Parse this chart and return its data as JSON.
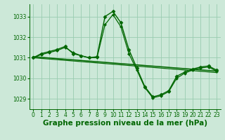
{
  "title": "Graphe pression niveau de la mer (hPa)",
  "bg_color": "#cce8d8",
  "grid_color": "#99ccb0",
  "line_color": "#006600",
  "xlim": [
    -0.5,
    23.5
  ],
  "ylim": [
    1028.5,
    1033.6
  ],
  "yticks": [
    1029,
    1030,
    1031,
    1032,
    1033
  ],
  "xticks": [
    0,
    1,
    2,
    3,
    4,
    5,
    6,
    7,
    8,
    9,
    10,
    11,
    12,
    13,
    14,
    15,
    16,
    17,
    18,
    19,
    20,
    21,
    22,
    23
  ],
  "series": [
    {
      "x": [
        0,
        1,
        2,
        3,
        4,
        5,
        6,
        7,
        8,
        9,
        10,
        11,
        12,
        13,
        14,
        15,
        16,
        17,
        18,
        19,
        20,
        21,
        22,
        23
      ],
      "y": [
        1031.0,
        1031.2,
        1031.3,
        1031.4,
        1031.55,
        1031.2,
        1031.1,
        1031.0,
        1031.05,
        1033.0,
        1033.25,
        1032.7,
        1031.4,
        1030.5,
        1029.6,
        1029.1,
        1029.2,
        1029.4,
        1030.1,
        1030.3,
        1030.45,
        1030.55,
        1030.6,
        1030.4
      ],
      "marker": "D",
      "markersize": 2.5,
      "lw": 1.0,
      "zorder": 4
    },
    {
      "x": [
        0,
        1,
        2,
        3,
        4,
        5,
        6,
        7,
        8,
        9,
        10,
        11,
        12,
        13,
        14,
        15,
        16,
        17,
        18,
        19,
        20,
        21,
        22,
        23
      ],
      "y": [
        1031.0,
        1031.15,
        1031.25,
        1031.35,
        1031.5,
        1031.25,
        1031.1,
        1031.0,
        1031.0,
        1032.6,
        1033.1,
        1032.5,
        1031.2,
        1030.4,
        1029.55,
        1029.05,
        1029.15,
        1029.35,
        1030.0,
        1030.25,
        1030.4,
        1030.5,
        1030.55,
        1030.35
      ],
      "marker": "D",
      "markersize": 2.0,
      "lw": 0.9,
      "zorder": 3
    },
    {
      "x": [
        0,
        23
      ],
      "y": [
        1031.05,
        1030.35
      ],
      "marker": null,
      "markersize": 0,
      "lw": 1.1,
      "zorder": 2
    },
    {
      "x": [
        0,
        23
      ],
      "y": [
        1031.0,
        1030.28
      ],
      "marker": null,
      "markersize": 0,
      "lw": 0.9,
      "zorder": 2
    }
  ],
  "tick_fontsize": 5.5,
  "xlabel_fontsize": 7.5
}
